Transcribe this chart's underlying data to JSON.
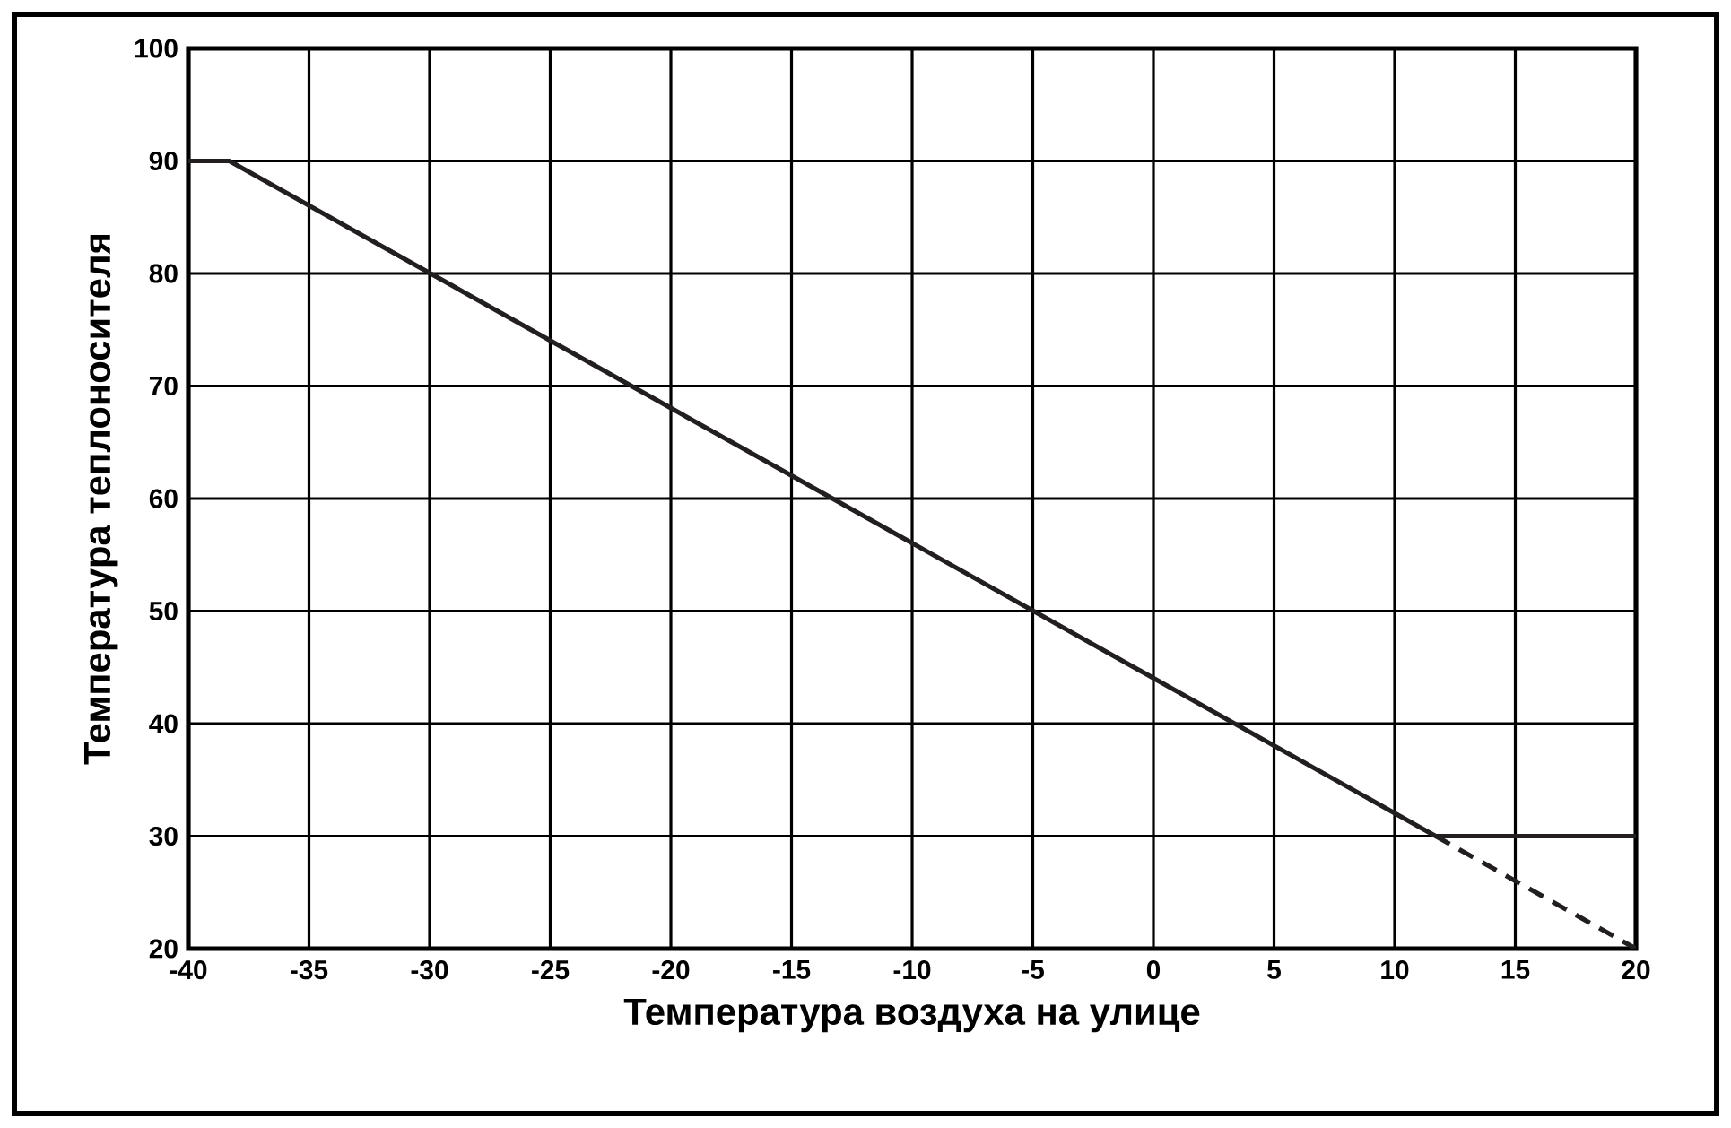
{
  "chart_data": {
    "type": "line",
    "xlabel": "Температура воздуха на улице",
    "ylabel": "Температура теплоносителя",
    "xlim": [
      -40,
      20
    ],
    "ylim": [
      20,
      100
    ],
    "xticks": [
      -40,
      -35,
      -30,
      -25,
      -20,
      -15,
      -10,
      -5,
      0,
      5,
      10,
      15,
      20
    ],
    "yticks": [
      20,
      30,
      40,
      50,
      60,
      70,
      80,
      90,
      100
    ],
    "grid": true,
    "series": [
      {
        "color": "#231f20",
        "line_style": "solid",
        "x": [
          -40,
          -38.3,
          11.7,
          20
        ],
        "values": [
          90,
          90,
          30,
          30
        ]
      },
      {
        "color": "#231f20",
        "line_style": "dashed",
        "x": [
          11.7,
          20
        ],
        "values": [
          30,
          20
        ]
      }
    ]
  }
}
